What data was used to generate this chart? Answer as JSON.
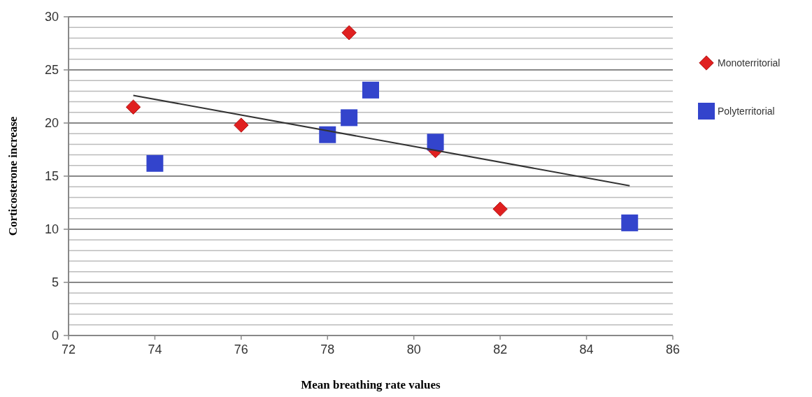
{
  "chart_data": {
    "type": "scatter",
    "xlabel": "Mean breathing rate values",
    "ylabel": "Corticosterone increase",
    "xlim": [
      72,
      86
    ],
    "xticks": [
      72,
      74,
      76,
      78,
      80,
      82,
      84,
      86
    ],
    "ylim": [
      0,
      30
    ],
    "yticks": [
      0,
      {
        "value": 1,
        "label": null
      },
      {
        "value": 2,
        "label": null
      },
      {
        "value": 3,
        "label": null
      },
      {
        "value": 4,
        "label": null
      },
      5,
      {
        "value": 6,
        "label": null
      },
      {
        "value": 7,
        "label": null
      },
      {
        "value": 8,
        "label": null
      },
      {
        "value": 9,
        "label": null
      },
      10,
      {
        "value": 11,
        "label": null
      },
      {
        "value": 12,
        "label": null
      },
      {
        "value": 13,
        "label": null
      },
      {
        "value": 14,
        "label": null
      },
      15,
      {
        "value": 16,
        "label": null
      },
      {
        "value": 17,
        "label": null
      },
      {
        "value": 18,
        "label": null
      },
      {
        "value": 19,
        "label": null
      },
      20,
      {
        "value": 21,
        "label": null
      },
      {
        "value": 22,
        "label": null
      },
      {
        "value": 23,
        "label": null
      },
      {
        "value": 24,
        "label": null
      },
      25,
      {
        "value": 26,
        "label": null
      },
      {
        "value": 27,
        "label": null
      },
      {
        "value": 28,
        "label": null
      },
      {
        "value": 29,
        "label": null
      },
      30
    ],
    "grid": "y",
    "legend": "right",
    "series": [
      {
        "name": "Monoterritorial",
        "color": "#e02020",
        "marker": "diamond",
        "x": [
          73.5,
          76,
          78.5,
          80.5,
          82
        ],
        "values": [
          21.5,
          19.8,
          28.5,
          17.4,
          11.9
        ]
      },
      {
        "name": "Polyterritorial",
        "color": "#3344cc",
        "marker": "square",
        "x": [
          74,
          78,
          78.5,
          79,
          80.5,
          85
        ],
        "values": [
          16.2,
          18.9,
          20.5,
          23.1,
          18.2,
          10.6
        ]
      },
      {
        "type": "line",
        "color": "#333333",
        "marker": "none",
        "x": [
          73.5,
          85
        ],
        "values": [
          22.6,
          14.1
        ]
      }
    ]
  }
}
